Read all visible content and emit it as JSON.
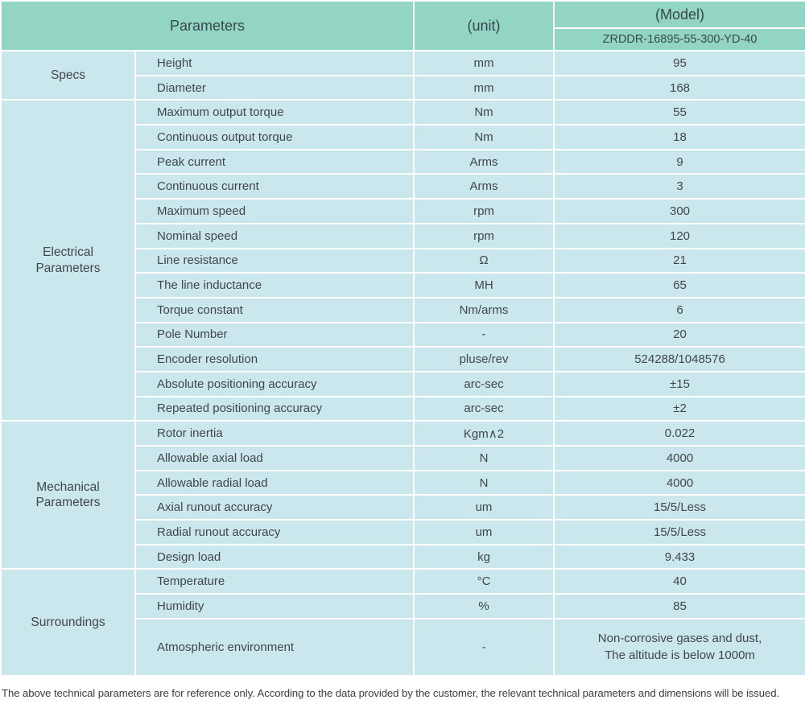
{
  "table": {
    "header": {
      "parameters_label": "Parameters",
      "unit_label": "(unit)",
      "model_label": "(Model)",
      "model_value": "ZRDDR-16895-55-300-YD-40"
    },
    "sections": [
      {
        "group": "Specs",
        "rows": [
          {
            "param": "Height",
            "unit": "mm",
            "value": "95"
          },
          {
            "param": "Diameter",
            "unit": "mm",
            "value": "168"
          }
        ]
      },
      {
        "group": "Electrical Parameters",
        "rows": [
          {
            "param": "Maximum output torque",
            "unit": "Nm",
            "value": "55"
          },
          {
            "param": "Continuous output torque",
            "unit": "Nm",
            "value": "18"
          },
          {
            "param": "Peak current",
            "unit": "Arms",
            "value": "9"
          },
          {
            "param": "Continuous current",
            "unit": "Arms",
            "value": "3"
          },
          {
            "param": "Maximum speed",
            "unit": "rpm",
            "value": "300"
          },
          {
            "param": "Nominal speed",
            "unit": "rpm",
            "value": "120"
          },
          {
            "param": "Line resistance",
            "unit": "Ω",
            "value": "21"
          },
          {
            "param": "The line inductance",
            "unit": "MH",
            "value": "65"
          },
          {
            "param": "Torque constant",
            "unit": "Nm/arms",
            "value": "6"
          },
          {
            "param": "Pole Number",
            "unit": "-",
            "value": "20"
          },
          {
            "param": "Encoder resolution",
            "unit": "pluse/rev",
            "value": "524288/1048576"
          },
          {
            "param": "Absolute positioning accuracy",
            "unit": "arc-sec",
            "value": "±15"
          },
          {
            "param": "Repeated positioning accuracy",
            "unit": "arc-sec",
            "value": "±2"
          }
        ]
      },
      {
        "group": "Mechanical Parameters",
        "rows": [
          {
            "param": "Rotor inertia",
            "unit": "Kgm∧2",
            "value": "0.022"
          },
          {
            "param": "Allowable axial load",
            "unit": "N",
            "value": "4000"
          },
          {
            "param": "Allowable radial load",
            "unit": "N",
            "value": "4000"
          },
          {
            "param": "Axial runout accuracy",
            "unit": "um",
            "value": "15/5/Less"
          },
          {
            "param": "Radial runout accuracy",
            "unit": "um",
            "value": "15/5/Less"
          },
          {
            "param": "Design load",
            "unit": "kg",
            "value": "9.433"
          }
        ]
      },
      {
        "group": "Surroundings",
        "rows": [
          {
            "param": "Temperature",
            "unit": "°C",
            "value": "40"
          },
          {
            "param": "Humidity",
            "unit": "%",
            "value": "85"
          },
          {
            "param": "Atmospheric environment",
            "unit": "-",
            "value": "Non-corrosive gases and dust,\nThe altitude is below 1000m"
          }
        ]
      }
    ]
  },
  "footer_note": "The above technical parameters are for reference only. According to the data provided by the customer, the relevant technical parameters and dimensions will be issued.",
  "colors": {
    "header_bg": "#93d5c5",
    "cell_bg": "#cbe7ee",
    "border": "#ffffff",
    "text": "#3f4749"
  }
}
